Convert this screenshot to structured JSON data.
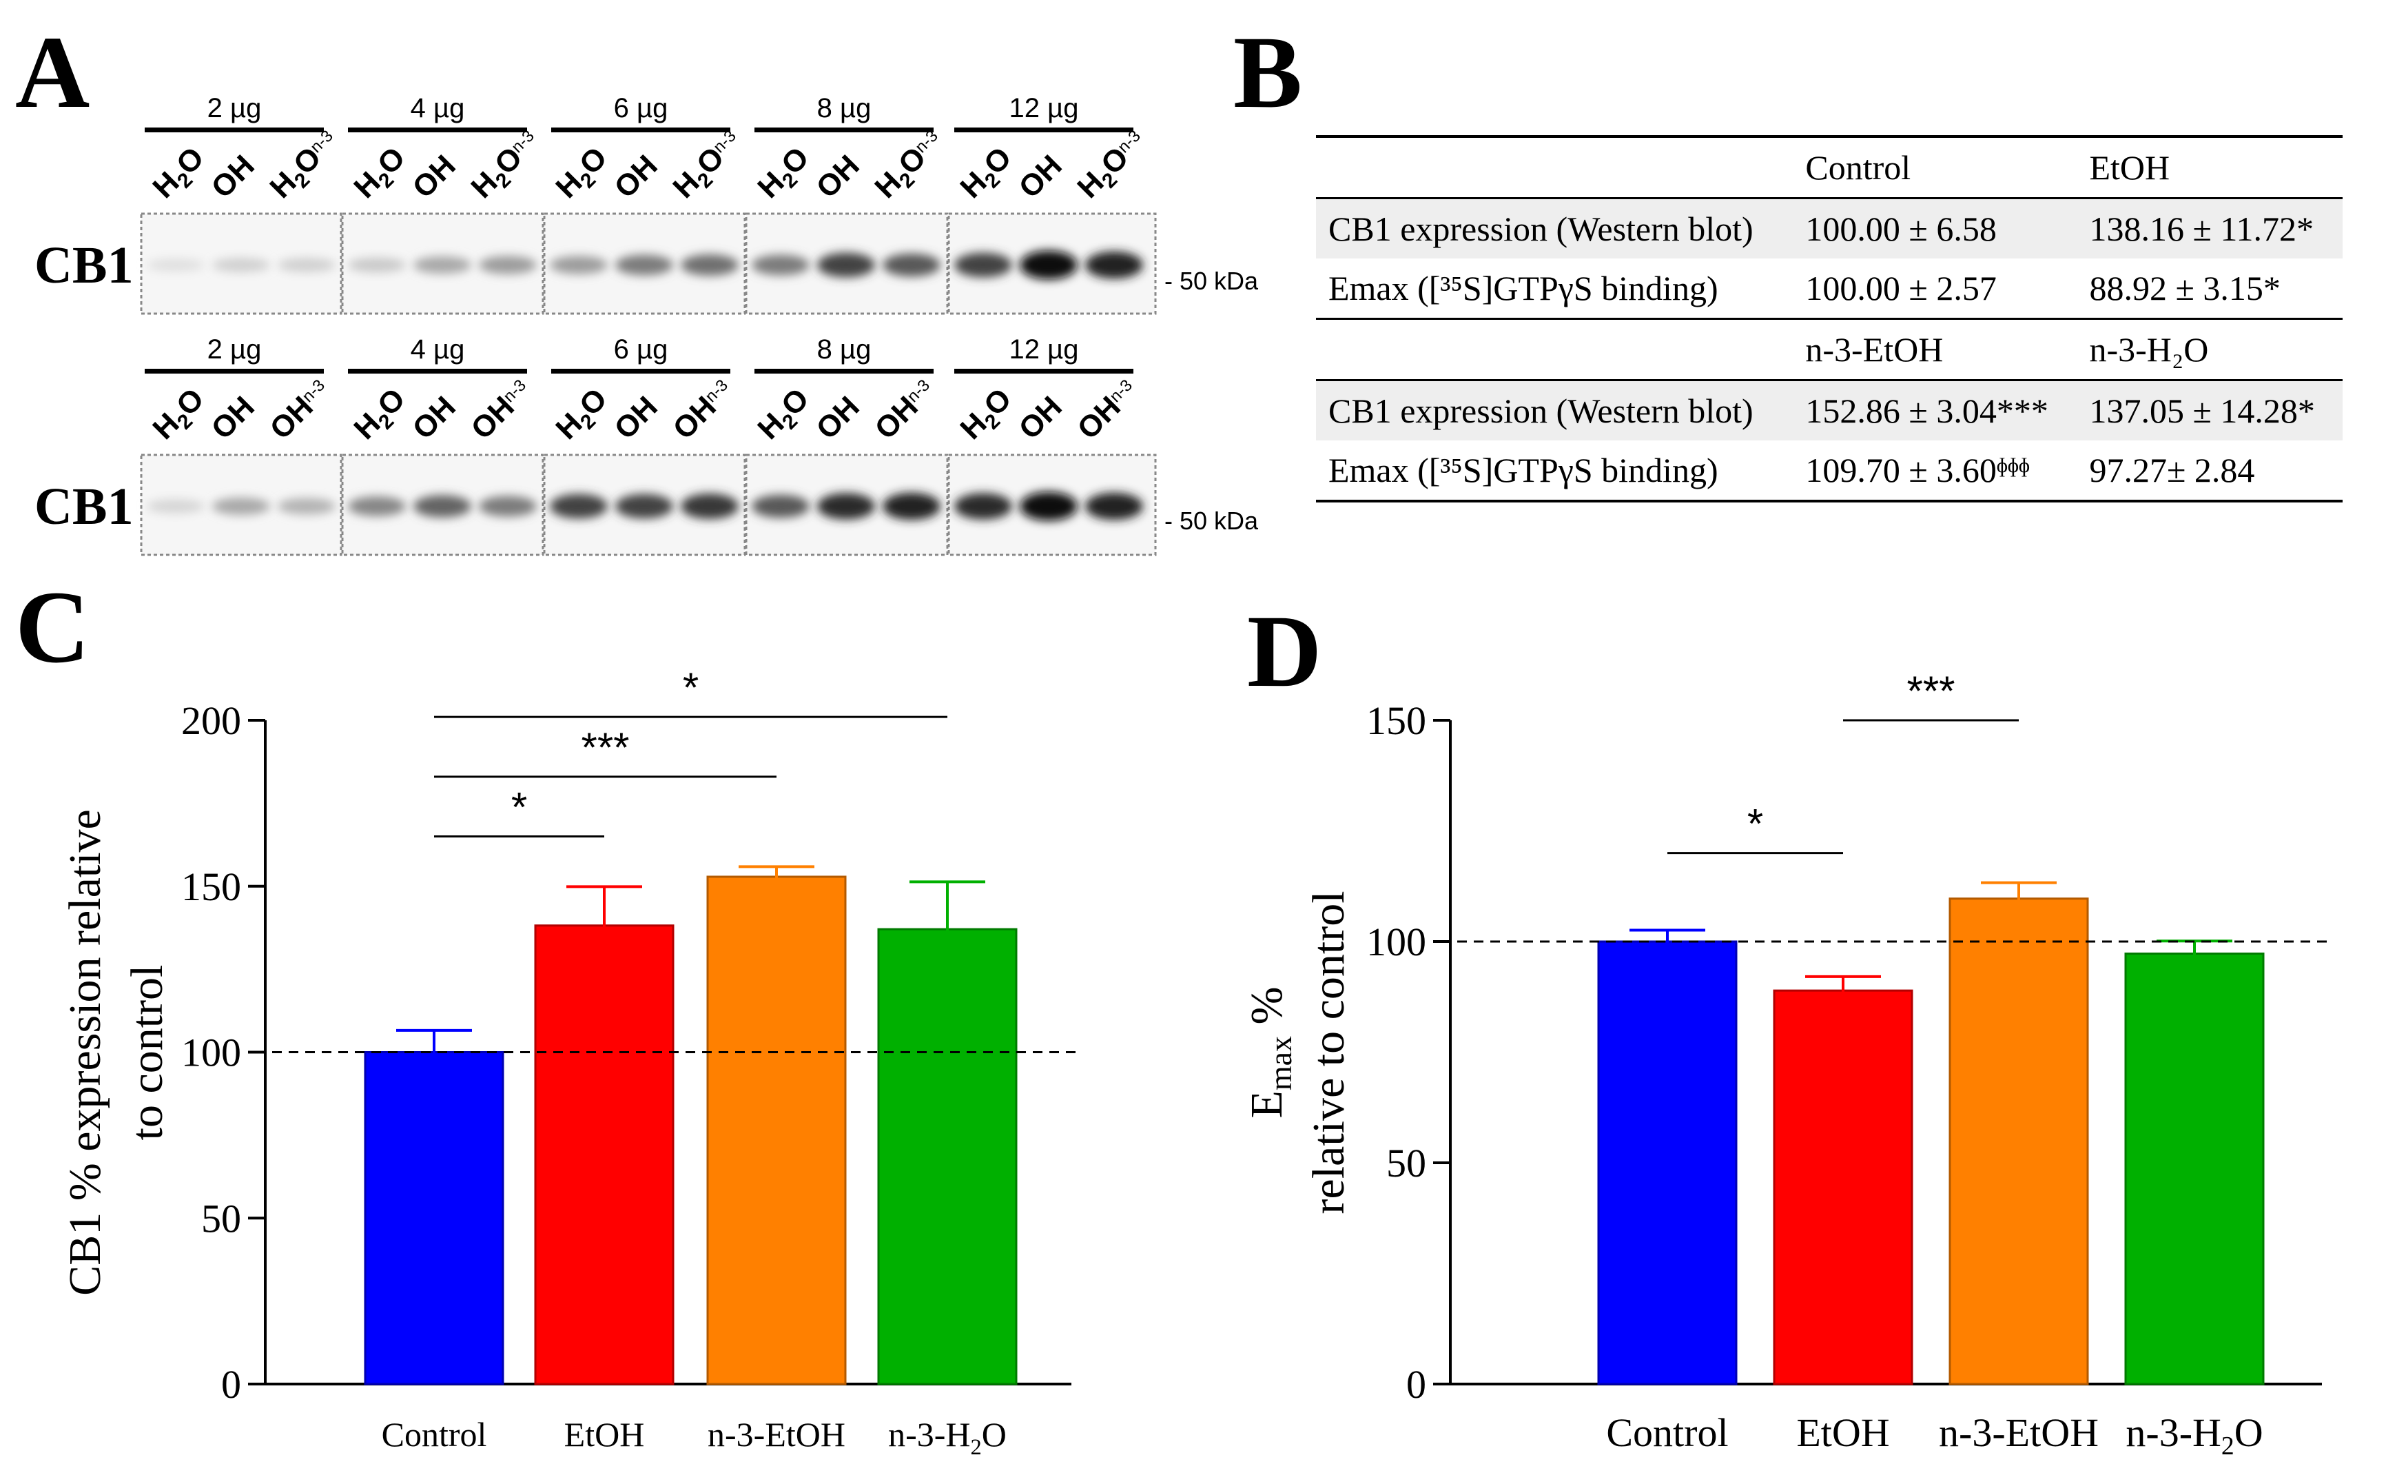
{
  "panels": {
    "A": "A",
    "B": "B",
    "C": "C",
    "D": "D"
  },
  "blot": {
    "row_label": "CB1",
    "marker": "- 50 kDa",
    "top": {
      "groups": [
        "2 µg",
        "4 µg",
        "6 µg",
        "8 µg",
        "12 µg"
      ],
      "lane_labels": [
        "H2O",
        "OH",
        "H2On-3"
      ],
      "band_intensity": [
        [
          0.05,
          0.12,
          0.12
        ],
        [
          0.15,
          0.3,
          0.35
        ],
        [
          0.35,
          0.5,
          0.55
        ],
        [
          0.5,
          0.75,
          0.65
        ],
        [
          0.75,
          1.0,
          0.9
        ]
      ]
    },
    "bottom": {
      "groups": [
        "2 µg",
        "4 µg",
        "6 µg",
        "8 µg",
        "12 µg"
      ],
      "lane_labels": [
        "H2O",
        "OH",
        "OHn-3"
      ],
      "band_intensity": [
        [
          0.1,
          0.3,
          0.25
        ],
        [
          0.45,
          0.6,
          0.5
        ],
        [
          0.75,
          0.75,
          0.8
        ],
        [
          0.65,
          0.85,
          0.9
        ],
        [
          0.85,
          1.0,
          0.9
        ]
      ]
    }
  },
  "table": {
    "header1": [
      "",
      "Control",
      "EtOH"
    ],
    "row1": [
      "CB1 expression (Western blot)",
      "100.00 ± 6.58",
      "138.16 ± 11.72*"
    ],
    "row2": [
      "Emax ([³⁵S]GTPγS binding)",
      "100.00 ± 2.57",
      "88.92 ± 3.15*"
    ],
    "header2": [
      "",
      "n-3-EtOH",
      "n-3-H₂O"
    ],
    "row3": [
      "CB1 expression (Western blot)",
      "152.86 ± 3.04***",
      "137.05 ± 14.28*"
    ],
    "row4": [
      "Emax ([³⁵S]GTPγS binding)",
      "109.70 ± 3.60ᶲᶲᶲ",
      "97.27± 2.84"
    ]
  },
  "chart_data": [
    {
      "type": "bar",
      "panel": "C",
      "categories": [
        "Control",
        "EtOH",
        "n-3-EtOH",
        "n-3-H2O"
      ],
      "values": [
        100.0,
        138.16,
        152.86,
        137.05
      ],
      "errors": [
        6.58,
        11.72,
        3.04,
        14.28
      ],
      "colors": [
        "#0000ff",
        "#ff0000",
        "#ff8000",
        "#00b000"
      ],
      "ylabel": "CB1 % expression relative to control",
      "ylim": [
        0,
        200
      ],
      "yticks": [
        0,
        50,
        100,
        150,
        200
      ],
      "reference_line": 100,
      "significance": [
        {
          "from": 0,
          "to": 1,
          "label": "*",
          "y": 165
        },
        {
          "from": 0,
          "to": 2,
          "label": "***",
          "y": 183
        },
        {
          "from": 0,
          "to": 3,
          "label": "*",
          "y": 201
        }
      ]
    },
    {
      "type": "bar",
      "panel": "D",
      "categories": [
        "Control",
        "EtOH",
        "n-3-EtOH",
        "n-3-H2O"
      ],
      "values": [
        100.0,
        88.92,
        109.7,
        97.27
      ],
      "errors": [
        2.57,
        3.15,
        3.6,
        2.84
      ],
      "colors": [
        "#0000ff",
        "#ff0000",
        "#ff8000",
        "#00b000"
      ],
      "ylabel_line1": "Emax %",
      "ylabel_line2": "relative to control",
      "ylim": [
        0,
        150
      ],
      "yticks": [
        0,
        50,
        100,
        150
      ],
      "reference_line": 100,
      "significance": [
        {
          "from": 0,
          "to": 1,
          "label": "*",
          "y": 120
        },
        {
          "from": 1,
          "to": 2,
          "label": "***",
          "y": 150
        }
      ]
    }
  ]
}
